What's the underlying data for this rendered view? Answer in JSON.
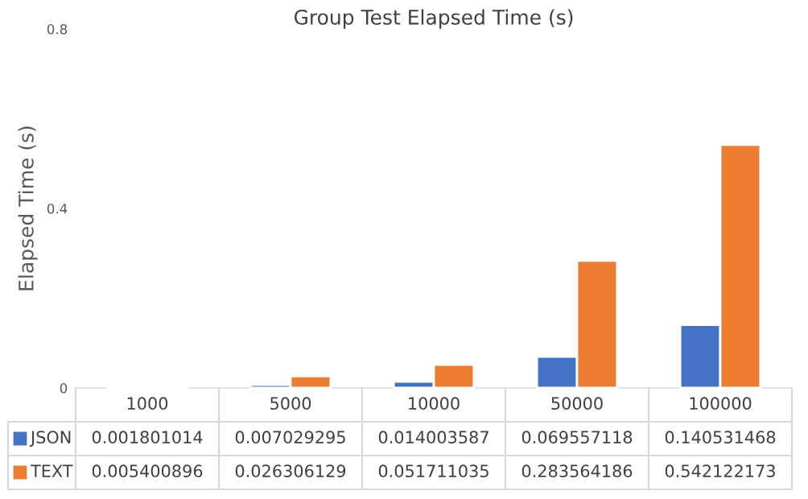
{
  "chart_data": {
    "type": "bar",
    "title": "Group Test Elapsed Time (s)",
    "ylabel": "Elapsed Time (s)",
    "categories": [
      "1000",
      "5000",
      "10000",
      "50000",
      "100000"
    ],
    "series": [
      {
        "name": "JSON",
        "color": "#4472c4",
        "values": [
          0.001801014,
          0.007029295,
          0.014003587,
          0.069557118,
          0.140531468
        ]
      },
      {
        "name": "TEXT",
        "color": "#ed7d31",
        "values": [
          0.005400896,
          0.026306129,
          0.051711035,
          0.283564186,
          0.542122173
        ]
      }
    ],
    "ylim": [
      0,
      0.8
    ],
    "yticks": [
      0,
      0.4,
      0.8
    ],
    "grid": false,
    "legend": "bottom",
    "data_labels": true
  }
}
